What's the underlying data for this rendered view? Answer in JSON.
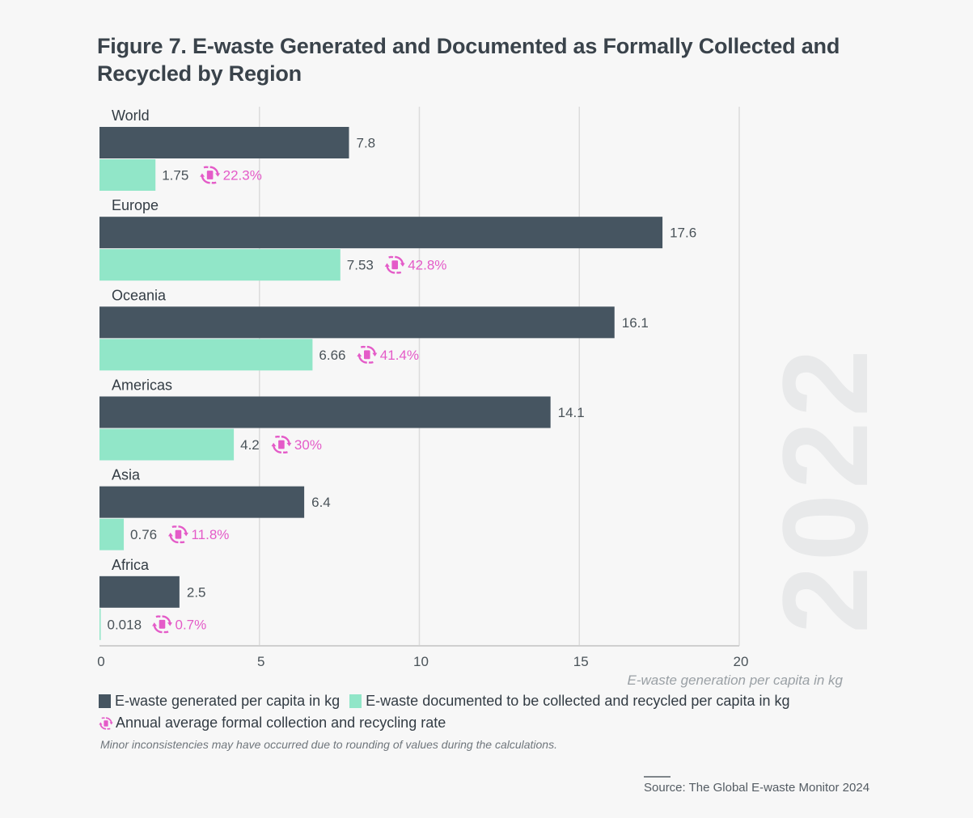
{
  "figure": {
    "title": "Figure 7. E-waste Generated and Documented as Formally Collected and Recycled by Region",
    "watermark": "2022",
    "note": "Minor inconsistencies may have occurred due to rounding of values during the calculations.",
    "source": "Source: The Global E-waste Monitor 2024"
  },
  "legend": {
    "generated": "E-waste generated per capita in kg",
    "collected": "E-waste documented to be collected and recycled per capita in kg",
    "rate": "Annual average formal collection and recycling rate"
  },
  "colors": {
    "generated": "#465561",
    "collected": "#91e6c8",
    "rate": "#e45bc8",
    "grid": "#dcdcdc",
    "value_text": "#4a5359",
    "label_text": "#333c44"
  },
  "chart_data": {
    "type": "bar",
    "orientation": "horizontal",
    "title": "Figure 7. E-waste Generated and Documented as Formally Collected and Recycled by Region",
    "xlabel": "E-waste generation per capita in kg",
    "ylabel": "",
    "xlim": [
      0,
      20
    ],
    "xticks": [
      0,
      5,
      10,
      15,
      20
    ],
    "grid": true,
    "legend_position": "bottom",
    "categories": [
      "World",
      "Europe",
      "Oceania",
      "Americas",
      "Asia",
      "Africa"
    ],
    "series": [
      {
        "name": "E-waste generated per capita in kg",
        "values": [
          7.8,
          17.6,
          16.1,
          14.1,
          6.4,
          2.5
        ],
        "labels": [
          "7.8",
          "17.6",
          "16.1",
          "14.1",
          "6.4",
          "2.5"
        ]
      },
      {
        "name": "E-waste documented to be collected and recycled per capita in kg",
        "values": [
          1.75,
          7.53,
          6.66,
          4.2,
          0.76,
          0.018
        ],
        "labels": [
          "1.75",
          "7.53",
          "6.66",
          "4.2",
          "0.76",
          "0.018"
        ]
      }
    ],
    "annotations": {
      "name": "Annual average formal collection and recycling rate",
      "values_percent": [
        22.3,
        42.8,
        41.4,
        30,
        11.8,
        0.7
      ],
      "labels": [
        "22.3%",
        "42.8%",
        "41.4%",
        "30%",
        "11.8%",
        "0.7%"
      ]
    }
  }
}
